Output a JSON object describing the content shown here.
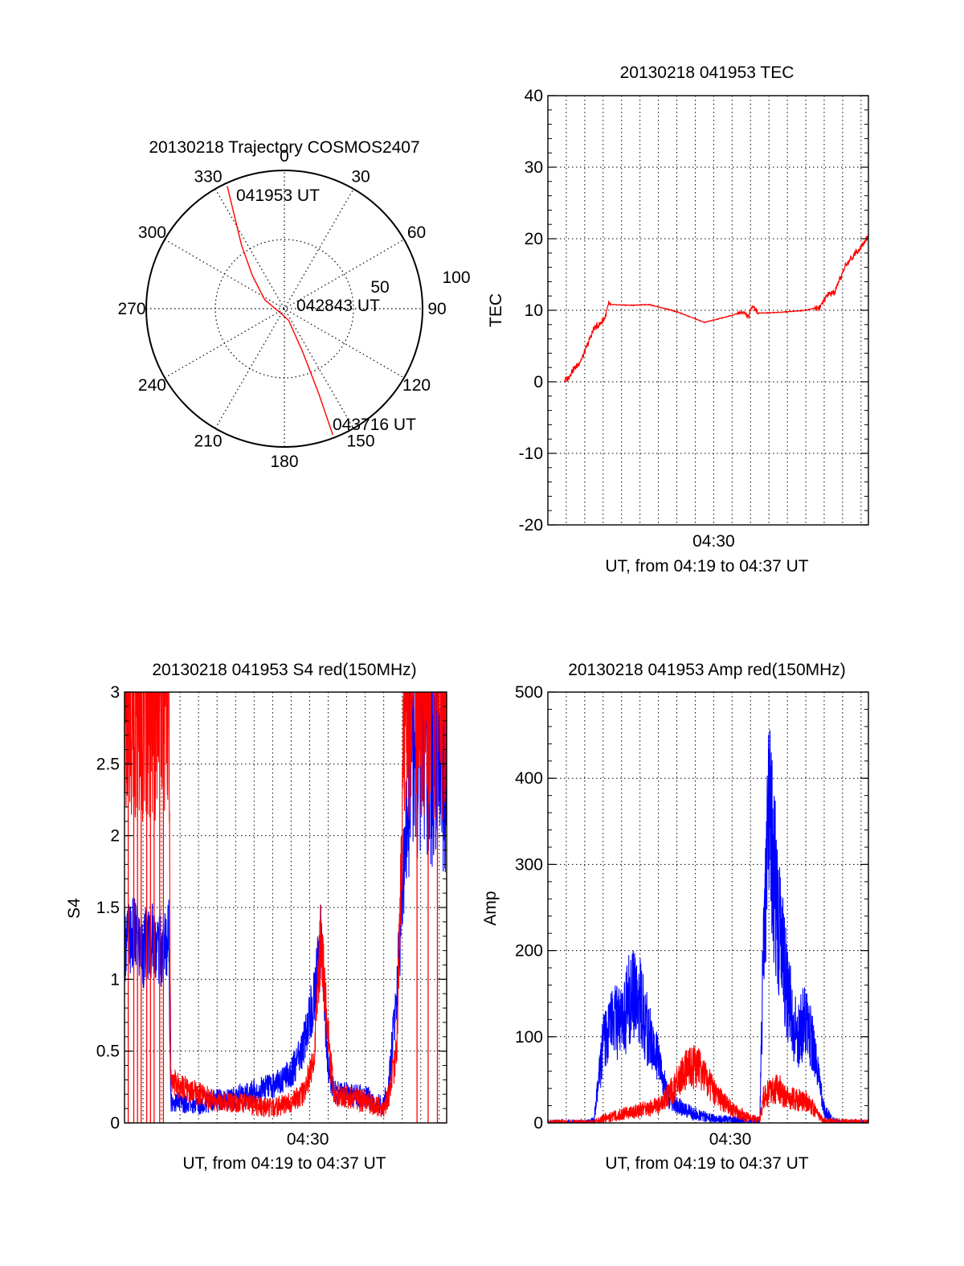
{
  "colors": {
    "red": "#ff0000",
    "blue": "#0000ff",
    "axis": "#000000"
  },
  "chart_data": [
    {
      "type": "polar",
      "title": "20130218 Trajectory COSMOS2407",
      "azimuth_labels": [
        "0",
        "30",
        "60",
        "90",
        "120",
        "150",
        "180",
        "210",
        "240",
        "270",
        "300",
        "330"
      ],
      "radial_labels": [
        "50",
        "100"
      ],
      "grid": "dotted",
      "trajectory": [
        {
          "az": 335,
          "zen": 88
        },
        {
          "az": 332,
          "zen": 70
        },
        {
          "az": 326,
          "zen": 50
        },
        {
          "az": 316,
          "zen": 30
        },
        {
          "az": 294,
          "zen": 14
        },
        {
          "az": 240,
          "zen": 4
        },
        {
          "az": 160,
          "zen": 8
        },
        {
          "az": 157,
          "zen": 30
        },
        {
          "az": 158,
          "zen": 60
        },
        {
          "az": 159,
          "zen": 88
        }
      ],
      "annotations": [
        {
          "text": "041953 UT",
          "az": 343,
          "zen": 88
        },
        {
          "text": "042843 UT",
          "az": 90,
          "zen": 8
        },
        {
          "text": "043716 UT",
          "az": 147,
          "zen": 96
        }
      ]
    },
    {
      "type": "line",
      "title": "20130218 041953 TEC",
      "xlabel": "UT, from 04:19 to 04:37 UT",
      "ylabel": "TEC",
      "xlim": [
        0,
        17.4
      ],
      "ylim": [
        -20,
        40
      ],
      "yticks": [
        -20,
        -10,
        0,
        10,
        20,
        30,
        40
      ],
      "xticks": [
        {
          "value": 9.0,
          "label": "04:30"
        }
      ],
      "series": [
        {
          "color": "#ff0000",
          "x": [
            0.9,
            1.1,
            1.3,
            1.6,
            1.9,
            2.2,
            2.5,
            2.8,
            3.1,
            3.3,
            4.5,
            5.5,
            7.0,
            8.5,
            10.0,
            10.6,
            10.9,
            11.1,
            11.4,
            12.5,
            14.0,
            14.8,
            15.2,
            15.6,
            16.1,
            16.7,
            17.4
          ],
          "y": [
            0.2,
            0.5,
            1.5,
            2.3,
            3.5,
            5.5,
            7.5,
            8.0,
            9.0,
            10.8,
            10.7,
            10.8,
            9.8,
            8.3,
            9.3,
            9.8,
            9.0,
            10.8,
            9.6,
            9.7,
            10.0,
            10.5,
            12.2,
            12.5,
            16.0,
            18.0,
            20.3
          ]
        }
      ]
    },
    {
      "type": "line",
      "title": "20130218 041953 S4 red(150MHz)",
      "xlabel": "UT, from 04:19 to 04:37 UT",
      "ylabel": "S4",
      "xlim": [
        0,
        17.4
      ],
      "ylim": [
        0,
        3
      ],
      "yticks": [
        0,
        0.5,
        1,
        1.5,
        2,
        2.5,
        3
      ],
      "xticks": [
        {
          "value": 9.9,
          "label": "04:30"
        }
      ],
      "series": [
        {
          "color": "#0000ff",
          "x": [
            0.0,
            0.5,
            1.0,
            1.5,
            2.0,
            2.4,
            2.5,
            3.0,
            4.0,
            5.0,
            6.0,
            7.0,
            8.0,
            9.0,
            9.6,
            10.2,
            10.6,
            11.0,
            11.3,
            12.0,
            13.0,
            14.0,
            14.3,
            14.7,
            15.2,
            15.5,
            16.0,
            17.4
          ],
          "y": [
            1.25,
            1.3,
            1.2,
            1.3,
            1.2,
            1.3,
            0.15,
            0.14,
            0.13,
            0.16,
            0.18,
            0.22,
            0.26,
            0.35,
            0.5,
            0.85,
            1.25,
            0.4,
            0.22,
            0.2,
            0.18,
            0.12,
            0.3,
            0.9,
            2.0,
            2.5,
            2.7,
            2.6
          ]
        },
        {
          "color": "#ff0000",
          "x": [
            0.0,
            2.4,
            2.5,
            3.0,
            4.0,
            5.0,
            6.0,
            7.0,
            8.0,
            9.0,
            9.6,
            10.2,
            10.6,
            11.0,
            11.3,
            12.0,
            13.0,
            14.0,
            14.3,
            14.7,
            15.2,
            16.0,
            17.4
          ],
          "y": [
            3.0,
            3.0,
            0.3,
            0.25,
            0.2,
            0.15,
            0.15,
            0.12,
            0.1,
            0.15,
            0.2,
            0.4,
            1.3,
            0.6,
            0.2,
            0.18,
            0.15,
            0.1,
            0.2,
            0.5,
            3.0,
            3.0,
            3.0
          ]
        }
      ]
    },
    {
      "type": "line",
      "title": "20130218 041953 Amp red(150MHz)",
      "xlabel": "UT, from 04:19 to 04:37 UT",
      "ylabel": "Amp",
      "xlim": [
        0,
        17.4
      ],
      "ylim": [
        0,
        500
      ],
      "yticks": [
        0,
        100,
        200,
        300,
        400,
        500
      ],
      "xticks": [
        {
          "value": 9.9,
          "label": "04:30"
        }
      ],
      "series": [
        {
          "color": "#0000ff",
          "x": [
            0.0,
            2.0,
            2.5,
            3.0,
            3.5,
            4.0,
            4.5,
            5.0,
            5.5,
            6.0,
            6.5,
            7.0,
            7.5,
            8.0,
            9.0,
            10.0,
            11.5,
            11.7,
            12.0,
            12.5,
            13.0,
            13.5,
            14.0,
            14.5,
            15.0,
            15.5,
            16.0,
            17.4
          ],
          "y": [
            0,
            0,
            2,
            90,
            120,
            110,
            150,
            140,
            100,
            70,
            30,
            20,
            15,
            10,
            5,
            3,
            2,
            200,
            350,
            240,
            150,
            100,
            120,
            80,
            15,
            2,
            0,
            0
          ]
        },
        {
          "color": "#ff0000",
          "x": [
            0.0,
            2.5,
            3.0,
            4.0,
            5.0,
            6.0,
            6.5,
            7.0,
            7.5,
            8.0,
            8.5,
            9.0,
            10.0,
            11.0,
            11.5,
            11.7,
            12.0,
            12.5,
            13.0,
            14.0,
            14.5,
            15.0,
            17.4
          ],
          "y": [
            0,
            0,
            5,
            10,
            15,
            20,
            30,
            45,
            60,
            65,
            55,
            35,
            15,
            5,
            2,
            30,
            35,
            40,
            30,
            25,
            15,
            2,
            0
          ]
        }
      ]
    }
  ]
}
